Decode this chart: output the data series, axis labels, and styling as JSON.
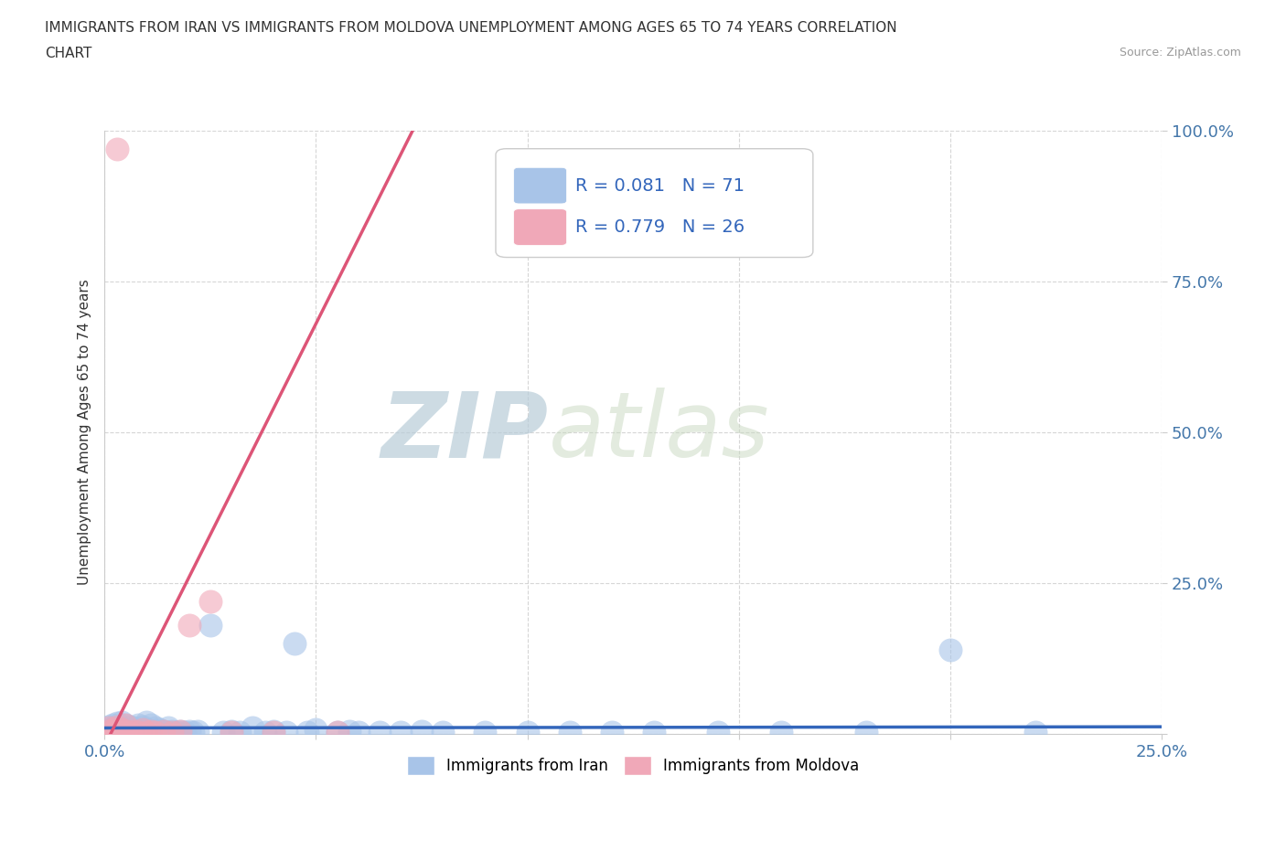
{
  "title_line1": "IMMIGRANTS FROM IRAN VS IMMIGRANTS FROM MOLDOVA UNEMPLOYMENT AMONG AGES 65 TO 74 YEARS CORRELATION",
  "title_line2": "CHART",
  "source_text": "Source: ZipAtlas.com",
  "ylabel": "Unemployment Among Ages 65 to 74 years",
  "xlim": [
    0.0,
    0.25
  ],
  "ylim": [
    0.0,
    1.0
  ],
  "iran_color": "#a8c4e8",
  "moldova_color": "#f0a8b8",
  "iran_trendline_color": "#3366bb",
  "moldova_trendline_color": "#dd5577",
  "iran_R": 0.081,
  "iran_N": 71,
  "moldova_R": 0.779,
  "moldova_N": 26,
  "legend_label_iran": "Immigrants from Iran",
  "legend_label_moldova": "Immigrants from Moldova",
  "watermark_zip": "ZIP",
  "watermark_atlas": "atlas",
  "watermark_color": "#ccdde8",
  "background_color": "#ffffff",
  "iran_x": [
    0.001,
    0.001,
    0.001,
    0.002,
    0.002,
    0.002,
    0.003,
    0.003,
    0.003,
    0.003,
    0.004,
    0.004,
    0.004,
    0.005,
    0.005,
    0.005,
    0.006,
    0.006,
    0.007,
    0.007,
    0.008,
    0.008,
    0.009,
    0.009,
    0.01,
    0.01,
    0.01,
    0.011,
    0.011,
    0.012,
    0.012,
    0.013,
    0.013,
    0.014,
    0.015,
    0.015,
    0.016,
    0.017,
    0.018,
    0.019,
    0.02,
    0.021,
    0.022,
    0.025,
    0.028,
    0.03,
    0.032,
    0.035,
    0.038,
    0.04,
    0.043,
    0.045,
    0.048,
    0.05,
    0.055,
    0.058,
    0.06,
    0.065,
    0.07,
    0.075,
    0.08,
    0.09,
    0.1,
    0.11,
    0.12,
    0.13,
    0.145,
    0.16,
    0.18,
    0.2,
    0.22
  ],
  "iran_y": [
    0.005,
    0.008,
    0.012,
    0.003,
    0.007,
    0.015,
    0.002,
    0.006,
    0.01,
    0.018,
    0.004,
    0.009,
    0.02,
    0.003,
    0.008,
    0.015,
    0.005,
    0.012,
    0.003,
    0.01,
    0.005,
    0.015,
    0.004,
    0.012,
    0.003,
    0.008,
    0.02,
    0.005,
    0.015,
    0.004,
    0.01,
    0.003,
    0.008,
    0.005,
    0.003,
    0.01,
    0.005,
    0.003,
    0.005,
    0.003,
    0.005,
    0.003,
    0.005,
    0.18,
    0.003,
    0.005,
    0.003,
    0.01,
    0.003,
    0.005,
    0.003,
    0.15,
    0.003,
    0.008,
    0.003,
    0.005,
    0.003,
    0.003,
    0.003,
    0.005,
    0.003,
    0.003,
    0.003,
    0.003,
    0.003,
    0.003,
    0.003,
    0.003,
    0.003,
    0.14,
    0.003
  ],
  "moldova_x": [
    0.001,
    0.001,
    0.002,
    0.002,
    0.003,
    0.003,
    0.004,
    0.004,
    0.005,
    0.005,
    0.006,
    0.007,
    0.008,
    0.009,
    0.01,
    0.011,
    0.012,
    0.014,
    0.016,
    0.018,
    0.02,
    0.025,
    0.03,
    0.04,
    0.055,
    0.003
  ],
  "moldova_y": [
    0.005,
    0.01,
    0.003,
    0.008,
    0.005,
    0.012,
    0.003,
    0.008,
    0.005,
    0.015,
    0.003,
    0.005,
    0.003,
    0.008,
    0.003,
    0.005,
    0.003,
    0.005,
    0.003,
    0.005,
    0.18,
    0.22,
    0.003,
    0.003,
    0.003,
    0.97
  ]
}
